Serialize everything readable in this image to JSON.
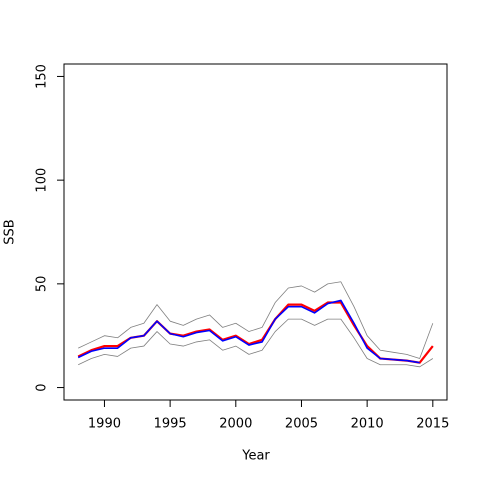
{
  "chart_data": {
    "type": "line",
    "x": [
      1988,
      1989,
      1990,
      1991,
      1992,
      1993,
      1994,
      1995,
      1996,
      1997,
      1998,
      1999,
      2000,
      2001,
      2002,
      2003,
      2004,
      2005,
      2006,
      2007,
      2008,
      2009,
      2010,
      2011,
      2012,
      2013,
      2014,
      2015
    ],
    "series": [
      {
        "color": "#808080",
        "width": 0.8,
        "values": [
          19,
          22,
          25,
          24,
          29,
          31,
          40,
          32,
          30,
          33,
          35,
          29,
          31,
          27,
          29,
          41,
          48,
          49,
          46,
          50,
          51,
          39,
          25,
          18,
          17,
          16,
          14,
          31
        ]
      },
      {
        "color": "#808080",
        "width": 0.8,
        "values": [
          11,
          14,
          16,
          15,
          19,
          20,
          27,
          21,
          20,
          22,
          23,
          18,
          20,
          16,
          18,
          27,
          33,
          33,
          30,
          33,
          33,
          24,
          14,
          11,
          11,
          11,
          10,
          14
        ]
      },
      {
        "color": "#ff0000",
        "width": 2.2,
        "values": [
          15,
          18,
          20,
          20,
          24,
          25,
          32,
          26,
          25,
          27,
          28,
          23,
          25,
          21,
          23,
          33,
          40,
          40,
          37,
          41,
          41,
          30,
          20,
          14,
          13.5,
          13,
          12,
          20
        ]
      },
      {
        "color": "#0000ff",
        "width": 1.6,
        "values": [
          14.5,
          17.5,
          19,
          19,
          24,
          25,
          32,
          26,
          24.5,
          26.5,
          27.5,
          22.5,
          24.5,
          20.5,
          22,
          33,
          39,
          39,
          36,
          40.5,
          42,
          31,
          19,
          14,
          13.5,
          13,
          12,
          null
        ]
      }
    ],
    "xlabel": "Year",
    "ylabel": "SSB",
    "xlim": [
      1986.92,
      2016.08
    ],
    "ylim": [
      -6,
      156
    ],
    "xticks": [
      1990,
      1995,
      2000,
      2005,
      2010,
      2015
    ],
    "yticks": [
      0,
      50,
      100,
      150
    ]
  }
}
